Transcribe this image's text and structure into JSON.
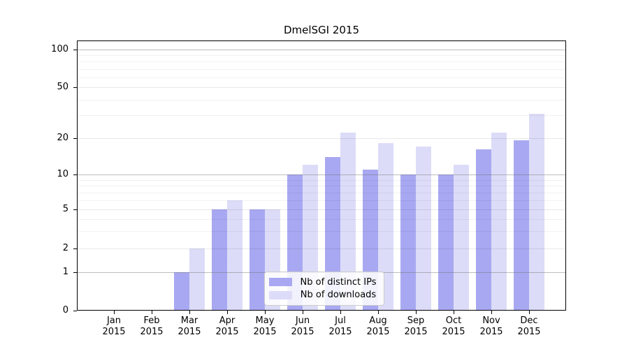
{
  "chart_data": {
    "type": "bar",
    "title": "DmelSGI 2015",
    "categories": [
      "Jan",
      "Feb",
      "Mar",
      "Apr",
      "May",
      "Jun",
      "Jul",
      "Aug",
      "Sep",
      "Oct",
      "Nov",
      "Dec"
    ],
    "year_label": "2015",
    "series": [
      {
        "name": "Nb of distinct IPs",
        "color": "#a8a8f2",
        "values": [
          0,
          0,
          1,
          5,
          5,
          10,
          14,
          11,
          10,
          10,
          16,
          19
        ]
      },
      {
        "name": "Nb of downloads",
        "color": "#dcdcf8",
        "values": [
          0,
          0,
          2,
          6,
          5,
          12,
          22,
          18,
          17,
          12,
          22,
          31
        ]
      }
    ],
    "xlabel": "",
    "ylabel": "",
    "yticks": [
      0,
      1,
      2,
      5,
      10,
      20,
      50,
      100
    ],
    "scale": "symlog",
    "ylim": [
      0,
      118
    ],
    "grid": true,
    "gridlines": {
      "decade": [
        1,
        10,
        100
      ],
      "major_light": [
        2,
        5,
        20,
        50
      ],
      "minor": [
        3,
        4,
        6,
        7,
        8,
        9,
        30,
        40,
        60,
        70,
        80,
        90
      ]
    },
    "legend_position": "lower center"
  },
  "legend": {
    "items": [
      "Nb of distinct IPs",
      "Nb of downloads"
    ]
  }
}
